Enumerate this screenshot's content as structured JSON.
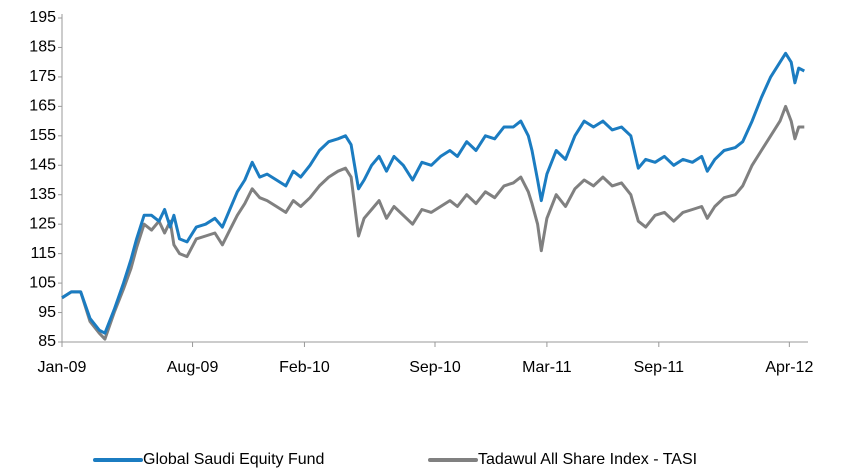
{
  "chart_data": {
    "type": "line",
    "x": [
      0,
      0.5,
      1,
      1.5,
      2,
      2.3,
      2.8,
      3.3,
      3.7,
      4,
      4.4,
      4.8,
      5.2,
      5.5,
      5.8,
      6,
      6.3,
      6.7,
      7.2,
      7.7,
      8.2,
      8.6,
      9,
      9.4,
      9.8,
      10.2,
      10.6,
      11,
      11.5,
      12,
      12.4,
      12.8,
      13.3,
      13.8,
      14.3,
      14.8,
      15.2,
      15.5,
      15.9,
      16.2,
      16.6,
      17,
      17.4,
      17.8,
      18.3,
      18.8,
      19.3,
      19.8,
      20.3,
      20.8,
      21.2,
      21.7,
      22.2,
      22.7,
      23.2,
      23.7,
      24.2,
      24.6,
      25,
      25.2,
      25.5,
      25.7,
      26,
      26.5,
      27,
      27.5,
      28,
      28.5,
      29,
      29.5,
      30,
      30.5,
      30.9,
      31.3,
      31.8,
      32.3,
      32.8,
      33.3,
      33.8,
      34.3,
      34.6,
      35,
      35.5,
      36.1,
      36.5,
      37,
      37.5,
      38,
      38.5,
      38.8,
      39.1,
      39.3,
      39.5,
      39.8
    ],
    "series": [
      {
        "name": "Global Saudi Equity Fund",
        "color": "#1b7cc1",
        "values": [
          100,
          102,
          102,
          93,
          89,
          88,
          96,
          105,
          113,
          120,
          128,
          128,
          126,
          130,
          124,
          128,
          120,
          119,
          124,
          125,
          127,
          124,
          130,
          136,
          140,
          146,
          141,
          142,
          140,
          138,
          143,
          141,
          145,
          150,
          153,
          154,
          155,
          152,
          137,
          140,
          145,
          148,
          143,
          148,
          145,
          140,
          146,
          145,
          148,
          150,
          148,
          153,
          150,
          155,
          154,
          158,
          158,
          160,
          155,
          150,
          140,
          133,
          142,
          150,
          147,
          155,
          160,
          158,
          160,
          157,
          158,
          155,
          144,
          147,
          146,
          148,
          145,
          147,
          146,
          148,
          143,
          147,
          150,
          151,
          153,
          160,
          168,
          175,
          180,
          183,
          180,
          173,
          178,
          177
        ]
      },
      {
        "name": "Tadawul All Share Index - TASI",
        "color": "#808080",
        "values": [
          100,
          102,
          102,
          92,
          88,
          86,
          95,
          103,
          110,
          117,
          125,
          123,
          126,
          122,
          126,
          118,
          115,
          114,
          120,
          121,
          122,
          118,
          123,
          128,
          132,
          137,
          134,
          133,
          131,
          129,
          133,
          131,
          134,
          138,
          141,
          143,
          144,
          141,
          121,
          127,
          130,
          133,
          127,
          131,
          128,
          125,
          130,
          129,
          131,
          133,
          131,
          135,
          132,
          136,
          134,
          138,
          139,
          141,
          136,
          132,
          125,
          116,
          127,
          135,
          131,
          137,
          140,
          138,
          141,
          138,
          139,
          135,
          126,
          124,
          128,
          129,
          126,
          129,
          130,
          131,
          127,
          131,
          134,
          135,
          138,
          145,
          150,
          155,
          160,
          165,
          160,
          154,
          158,
          158
        ]
      }
    ],
    "xlim": [
      0,
      40
    ],
    "xticks": [
      {
        "value": 0,
        "label": "Jan-09"
      },
      {
        "value": 7,
        "label": "Aug-09"
      },
      {
        "value": 13,
        "label": "Feb-10"
      },
      {
        "value": 20,
        "label": "Sep-10"
      },
      {
        "value": 26,
        "label": "Mar-11"
      },
      {
        "value": 32,
        "label": "Sep-11"
      },
      {
        "value": 39,
        "label": "Apr-12"
      }
    ],
    "ylim": [
      85,
      195
    ],
    "yticks": [
      85,
      95,
      105,
      115,
      125,
      135,
      145,
      155,
      165,
      175,
      185,
      195
    ],
    "grid": false,
    "legend": "bottom"
  }
}
